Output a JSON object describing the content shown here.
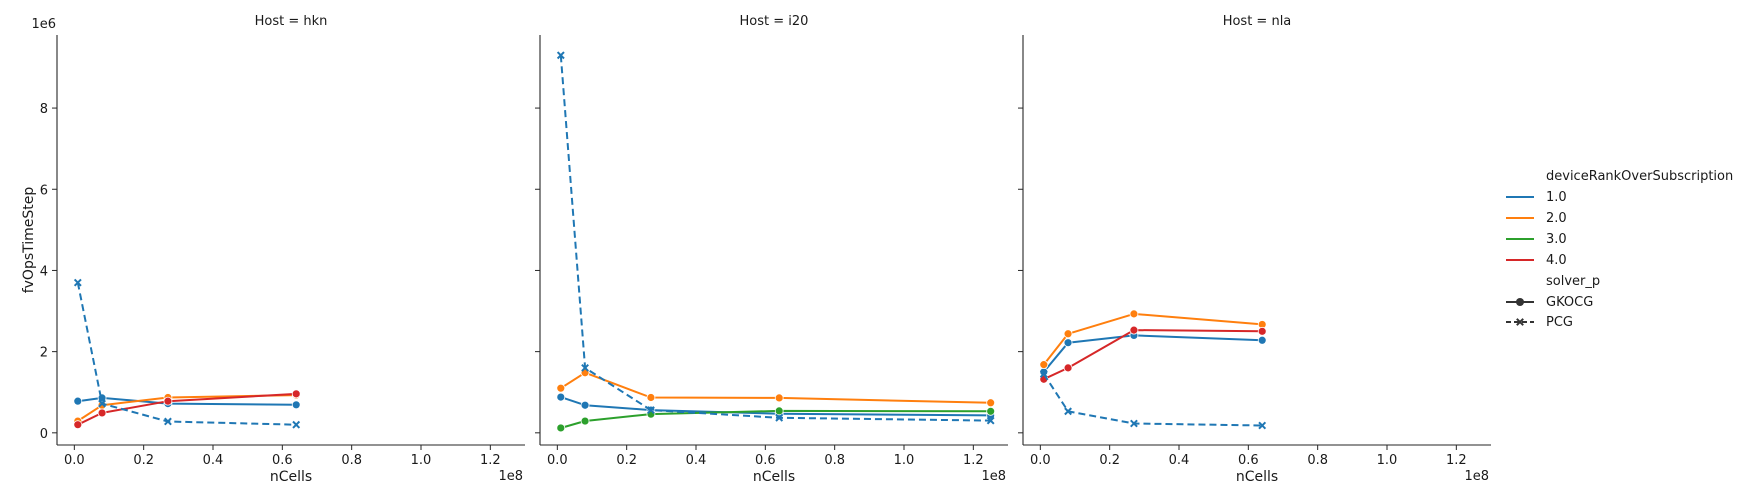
{
  "chart_data": {
    "type": "line",
    "xlabel": "nCells",
    "ylabel": "fvOpsTimeStep",
    "x_offset_label": "1e8",
    "y_offset_label": "1e6",
    "x_scale": 100000000,
    "y_scale": 1000000,
    "xlim": [
      -5000000,
      130000000
    ],
    "ylim": [
      -300000,
      9800000
    ],
    "x_ticks": [
      0,
      20000000,
      40000000,
      60000000,
      80000000,
      100000000,
      120000000
    ],
    "x_tick_labels": [
      "0.0",
      "0.2",
      "0.4",
      "0.6",
      "0.8",
      "1.0",
      "1.2"
    ],
    "y_ticks": [
      0,
      2000000,
      4000000,
      6000000,
      8000000
    ],
    "y_tick_labels": [
      "0",
      "2",
      "4",
      "6",
      "8"
    ],
    "grid": false,
    "shared_y": true,
    "colors": {
      "1.0": "#1f77b4",
      "2.0": "#ff7f0e",
      "3.0": "#2ca02c",
      "4.0": "#d62728"
    },
    "legend": {
      "position": "right",
      "hue_title": "deviceRankOverSubscription",
      "hue_entries": [
        "1.0",
        "2.0",
        "3.0",
        "4.0"
      ],
      "style_title": "solver_p",
      "style_entries": [
        {
          "label": "GKOCG",
          "marker": "circle",
          "dash": "solid"
        },
        {
          "label": "PCG",
          "marker": "x",
          "dash": "dashed"
        }
      ]
    },
    "panels": [
      {
        "title": "Host = hkn",
        "series": [
          {
            "hue": "1.0",
            "solver": "GKOCG",
            "x": [
              1000000,
              8000000,
              27000000,
              64000000
            ],
            "y": [
              780000,
              860000,
              720000,
              690000
            ]
          },
          {
            "hue": "2.0",
            "solver": "GKOCG",
            "x": [
              1000000,
              8000000,
              27000000,
              64000000
            ],
            "y": [
              290000,
              680000,
              870000,
              930000
            ]
          },
          {
            "hue": "4.0",
            "solver": "GKOCG",
            "x": [
              1000000,
              8000000,
              27000000,
              64000000
            ],
            "y": [
              200000,
              490000,
              780000,
              960000
            ]
          },
          {
            "hue": "1.0",
            "solver": "PCG",
            "x": [
              1000000,
              8000000,
              27000000,
              64000000
            ],
            "y": [
              3700000,
              720000,
              280000,
              200000
            ]
          }
        ]
      },
      {
        "title": "Host = i20",
        "series": [
          {
            "hue": "1.0",
            "solver": "GKOCG",
            "x": [
              1000000,
              8000000,
              27000000,
              64000000,
              125000000
            ],
            "y": [
              880000,
              680000,
              560000,
              470000,
              430000
            ]
          },
          {
            "hue": "2.0",
            "solver": "GKOCG",
            "x": [
              1000000,
              8000000,
              27000000,
              64000000,
              125000000
            ],
            "y": [
              1100000,
              1480000,
              870000,
              860000,
              740000
            ]
          },
          {
            "hue": "3.0",
            "solver": "GKOCG",
            "x": [
              1000000,
              8000000,
              27000000,
              64000000,
              125000000
            ],
            "y": [
              120000,
              290000,
              460000,
              540000,
              530000
            ]
          },
          {
            "hue": "1.0",
            "solver": "PCG",
            "x": [
              1000000,
              8000000,
              27000000,
              64000000,
              125000000
            ],
            "y": [
              9300000,
              1600000,
              560000,
              370000,
              300000
            ]
          }
        ]
      },
      {
        "title": "Host = nla",
        "series": [
          {
            "hue": "1.0",
            "solver": "GKOCG",
            "x": [
              1000000,
              8000000,
              27000000,
              64000000
            ],
            "y": [
              1500000,
              2220000,
              2400000,
              2280000
            ]
          },
          {
            "hue": "2.0",
            "solver": "GKOCG",
            "x": [
              1000000,
              8000000,
              27000000,
              64000000
            ],
            "y": [
              1680000,
              2440000,
              2930000,
              2670000
            ]
          },
          {
            "hue": "4.0",
            "solver": "GKOCG",
            "x": [
              1000000,
              8000000,
              27000000,
              64000000
            ],
            "y": [
              1320000,
              1600000,
              2530000,
              2500000
            ]
          },
          {
            "hue": "1.0",
            "solver": "PCG",
            "x": [
              1000000,
              8000000,
              27000000,
              64000000
            ],
            "y": [
              1450000,
              530000,
              230000,
              180000
            ]
          }
        ]
      }
    ]
  }
}
